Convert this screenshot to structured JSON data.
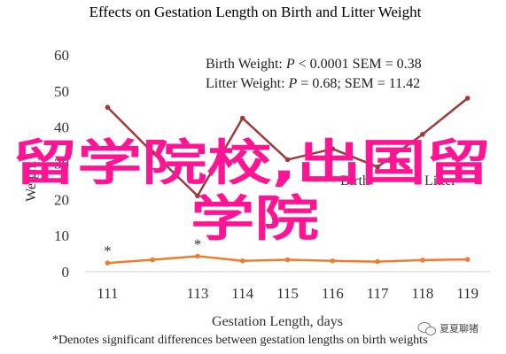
{
  "chart_data": {
    "type": "line",
    "title": "Effects on Gestation Length on Birth and Litter Weight",
    "xlabel": "Gestation Length, days",
    "ylabel": "Weight",
    "x": [
      111,
      112,
      113,
      114,
      115,
      116,
      117,
      118,
      119
    ],
    "x_tick_labels": [
      "111",
      "113",
      "114",
      "115",
      "116",
      "117",
      "118",
      "119"
    ],
    "ylim": [
      0,
      60
    ],
    "y_ticks": [
      "0",
      "10",
      "20",
      "30",
      "40",
      "50",
      "60"
    ],
    "series": [
      {
        "name": "Birth",
        "color": "#ed7d31",
        "values": [
          2.4,
          3.3,
          4.3,
          3.0,
          3.3,
          3.0,
          2.8,
          3.2,
          3.4
        ]
      },
      {
        "name": "Litter",
        "color": "#9e3b3b",
        "values": [
          45.5,
          33.0,
          21.0,
          42.5,
          31.0,
          34.0,
          29.0,
          38.0,
          48.0
        ]
      }
    ],
    "annotations": [
      {
        "text": "*",
        "x": 111
      },
      {
        "text": "*",
        "x": 113
      }
    ],
    "stats_lines": [
      {
        "prefix": "Birth Weight: ",
        "var": "P",
        "suffix": " < 0.0001 SEM = 0.38"
      },
      {
        "prefix": "Litter Weight: ",
        "var": "P",
        "suffix": " = 0.68; SEM = 11.42"
      }
    ],
    "legend_position": "bottom-right",
    "footnote": "*Denotes significant differences between gestation lengths on birth weights",
    "grid": false
  },
  "overlay": {
    "line1": "留学院校,出国留",
    "line2": "学院",
    "color": "#ff1493"
  },
  "watermark": {
    "text": "夏夏聊猪",
    "icon": "wechat-icon"
  }
}
